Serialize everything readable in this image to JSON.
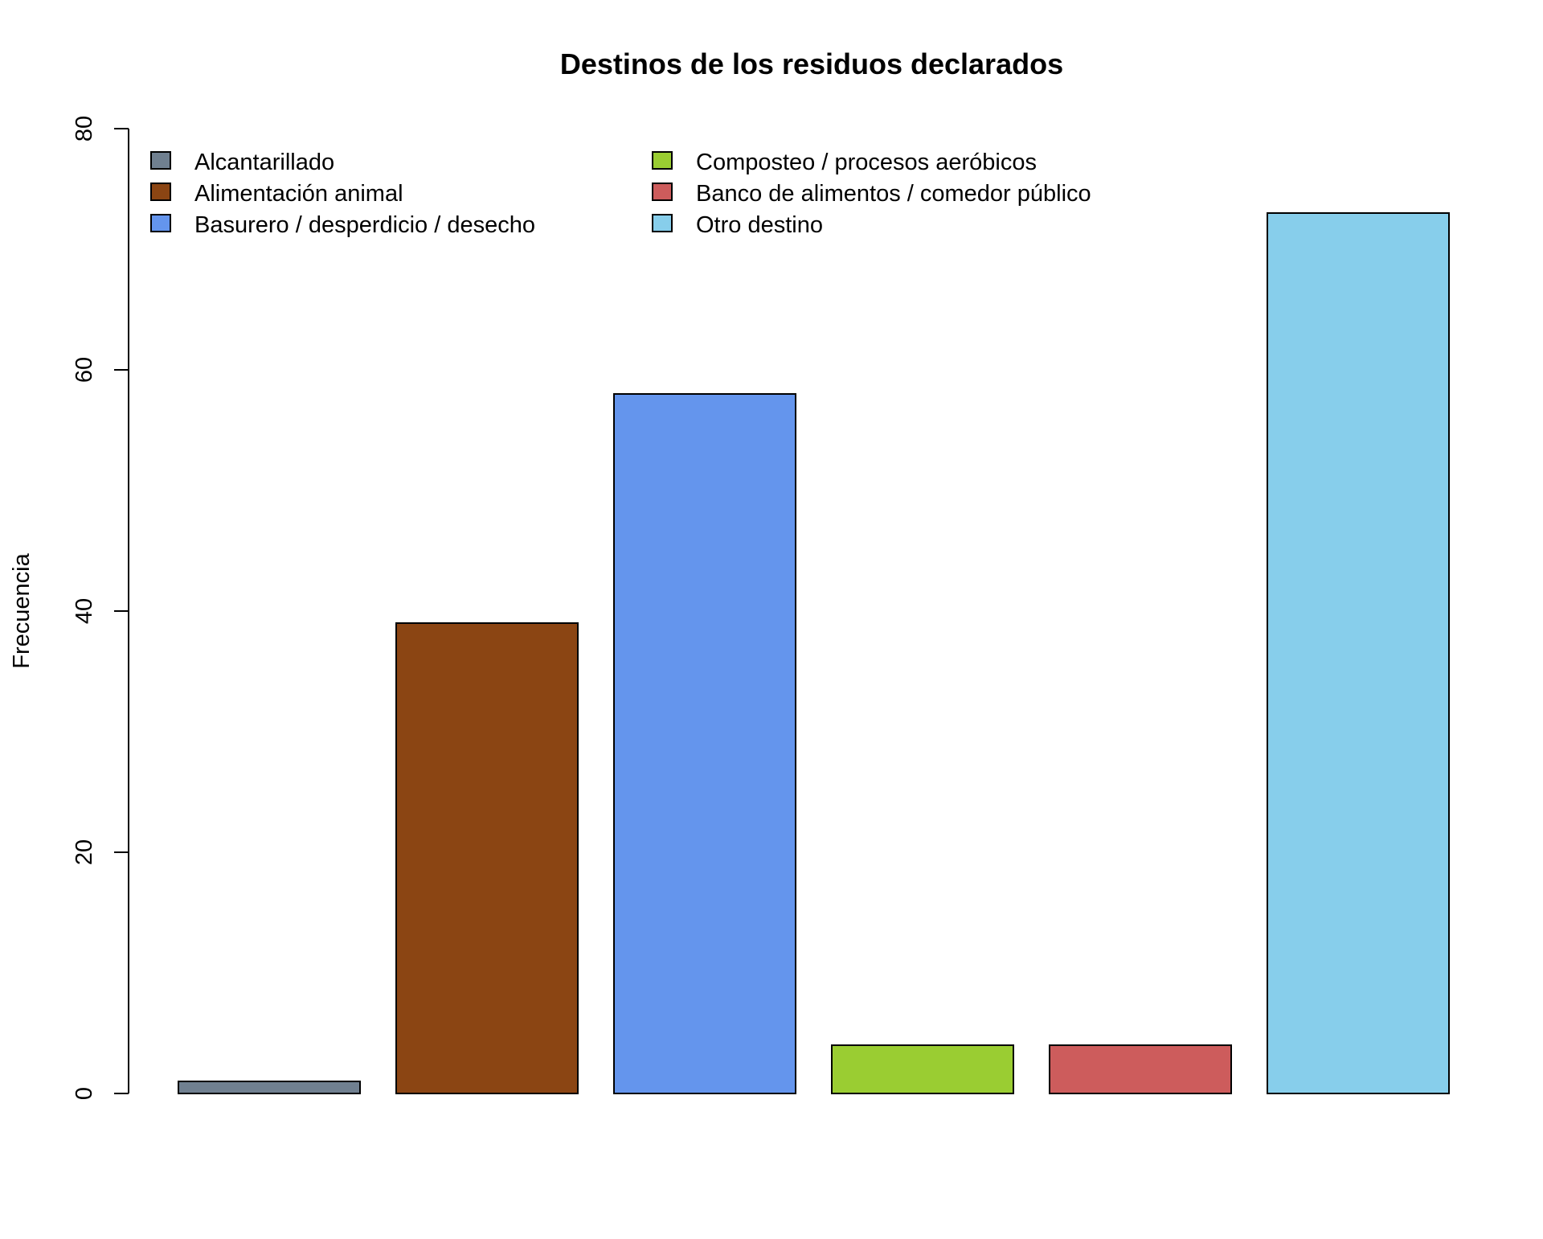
{
  "chart_data": {
    "type": "bar",
    "title": "Destinos de los residuos declarados",
    "xlabel": "",
    "ylabel": "Frecuencia",
    "ylim": [
      0,
      80
    ],
    "yticks": [
      0,
      20,
      40,
      60,
      80
    ],
    "grid": false,
    "legend_position": "top-left",
    "legend_columns": 2,
    "categories": [
      "Alcantarillado",
      "Alimentación animal",
      "Basurero / desperdicio / desecho",
      "Composteo / procesos aeróbicos",
      "Banco de alimentos / comedor público",
      "Otro destino"
    ],
    "values": [
      1,
      39,
      58,
      4,
      4,
      73
    ],
    "colors": [
      "#708090",
      "#8B4513",
      "#6495ED",
      "#9ACD32",
      "#CD5C5C",
      "#87CEEB"
    ]
  }
}
